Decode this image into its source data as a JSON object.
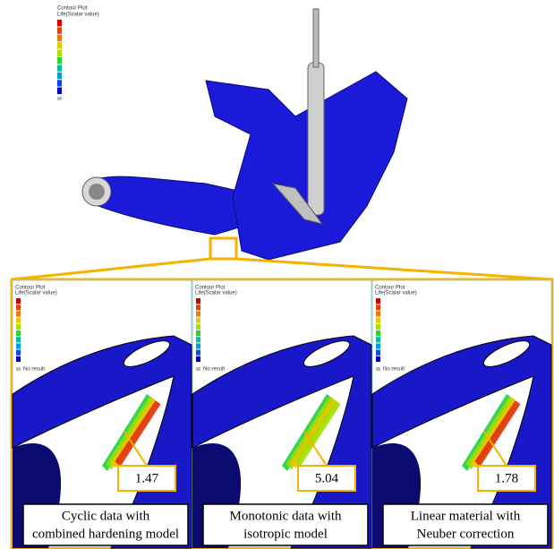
{
  "overview": {
    "legend_title": "Contour Plot",
    "legend_subtitle": "Life(Scalar value)"
  },
  "panels": [
    {
      "legend_title": "Contour Plot",
      "legend_subtitle": "Life(Scalar value)",
      "no_result": "No result",
      "value": 1.47,
      "caption": [
        "Cyclic data with",
        "combined hardening model"
      ]
    },
    {
      "legend_title": "Contour Plot",
      "legend_subtitle": "Life(Scalar value)",
      "no_result": "No result",
      "value": 5.04,
      "caption": [
        "Monotonic data with",
        "isotropic model"
      ]
    },
    {
      "legend_title": "Contour Plot",
      "legend_subtitle": "Life(Scalar value)",
      "no_result": "No result",
      "value": 1.78,
      "caption": [
        "Linear material with",
        "Neuber correction"
      ]
    }
  ]
}
